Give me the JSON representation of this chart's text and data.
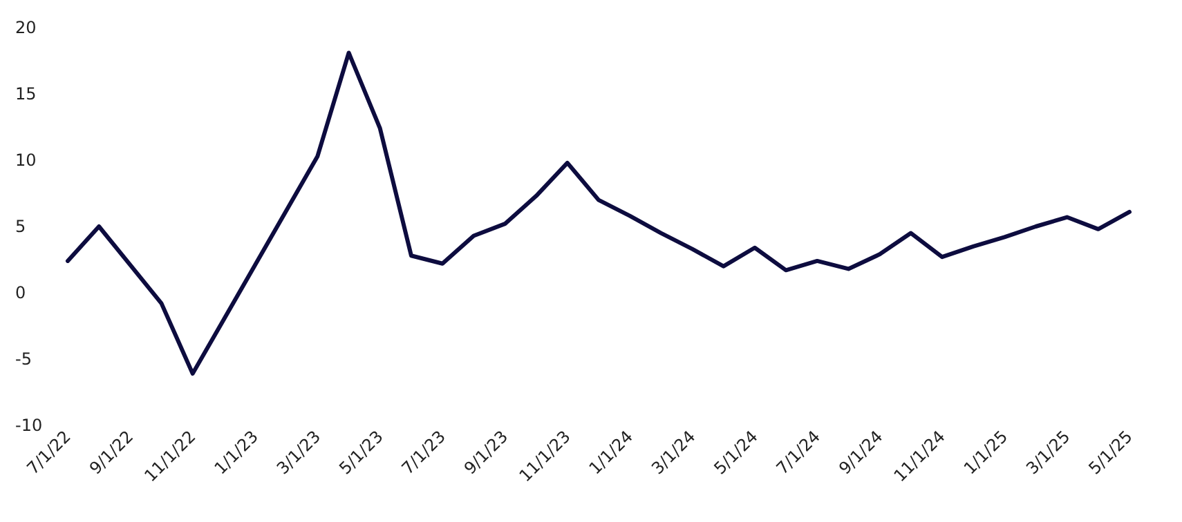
{
  "chart_data": {
    "type": "line",
    "categories": [
      "7/1/22",
      null,
      "9/1/22",
      null,
      "11/1/22",
      null,
      "1/1/23",
      null,
      "3/1/23",
      null,
      "5/1/23",
      null,
      "7/1/23",
      null,
      "9/1/23",
      null,
      "11/1/23",
      null,
      "1/1/24",
      null,
      "3/1/24",
      null,
      "5/1/24",
      null,
      "7/1/24",
      null,
      "9/1/24",
      null,
      "11/1/24",
      null,
      "1/1/25",
      null,
      "3/1/25",
      null,
      "5/1/25"
    ],
    "series": [
      {
        "color": "#0d0c3f",
        "values": [
          2.4,
          5.0,
          2.1,
          -0.8,
          -6.1,
          -2.0,
          2.1,
          6.2,
          10.3,
          18.1,
          12.4,
          2.8,
          2.2,
          4.3,
          5.2,
          7.3,
          9.8,
          7.0,
          5.8,
          4.5,
          3.3,
          2.0,
          3.4,
          1.7,
          2.4,
          1.8,
          2.9,
          4.5,
          2.7,
          3.5,
          4.2,
          5.0,
          5.7,
          4.8,
          6.1
        ]
      }
    ],
    "ylim": [
      -10,
      20
    ],
    "yticks": [
      -10,
      -5,
      0,
      5,
      10,
      15,
      20
    ],
    "grid": false,
    "marker": "none",
    "line_style": "solid"
  }
}
